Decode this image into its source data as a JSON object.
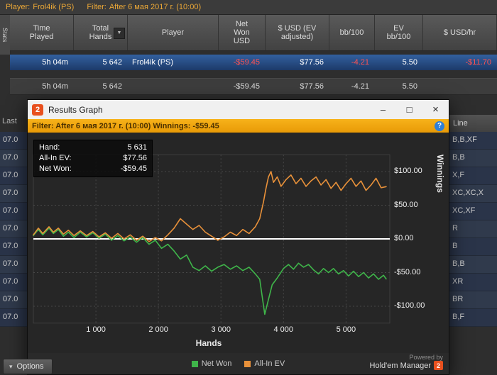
{
  "colors": {
    "accent_orange": "#eaa737",
    "negative_red": "#ff5252",
    "selected_row_blue": "#2d5090",
    "filter_bar_orange": "#f0a30a",
    "net_won_green": "#3fb54a",
    "allin_ev_orange": "#e8913a"
  },
  "top_bar": {
    "player_label": "Player:",
    "player_value": "Frol4ik (PS)",
    "filter_label": "Filter:",
    "filter_value": "After 6 мая 2017 г. (10:00)"
  },
  "stats_tab": "Stats",
  "table": {
    "columns": [
      "Time\nPlayed",
      "Total\nHands",
      "Player",
      "Net\nWon\nUSD",
      "$ USD (EV\nadjusted)",
      "bb/100",
      "EV\nbb/100",
      "$ USD/hr"
    ],
    "sort_arrow": "▼",
    "rows": [
      {
        "selected": true,
        "cells": [
          {
            "t": "5h 04m"
          },
          {
            "t": "5 642"
          },
          {
            "t": "Frol4ik (PS)",
            "align": "left"
          },
          {
            "t": "-$59.45",
            "neg": true
          },
          {
            "t": "$77.56"
          },
          {
            "t": "-4.21",
            "neg": true
          },
          {
            "t": "5.50"
          },
          {
            "t": "-$11.70",
            "neg": true
          }
        ]
      },
      {
        "selected": false,
        "cells": [
          {
            "t": "5h 04m"
          },
          {
            "t": "5 642"
          },
          {
            "t": "",
            "align": "left"
          },
          {
            "t": "-$59.45"
          },
          {
            "t": "$77.56"
          },
          {
            "t": "-4.21"
          },
          {
            "t": "5.50"
          },
          {
            "t": ""
          }
        ]
      }
    ]
  },
  "background": {
    "last_label": "Last",
    "line_header": "Line",
    "rows": [
      {
        "time": "07.0",
        "line": "B,B,XF"
      },
      {
        "time": "07.0",
        "line": "B,B"
      },
      {
        "time": "07.0",
        "line": "X,F"
      },
      {
        "time": "07.0",
        "line": "XC,XC,X"
      },
      {
        "time": "07.0",
        "line": "XC,XF"
      },
      {
        "time": "07.0",
        "line": "R"
      },
      {
        "time": "07.0",
        "line": "B"
      },
      {
        "time": "07.0",
        "line": "B,B"
      },
      {
        "time": "07.0",
        "line": "XR"
      },
      {
        "time": "07.0",
        "line": "BR"
      },
      {
        "time": "07.0",
        "line": "B,F"
      }
    ]
  },
  "options_button": {
    "label": "Options",
    "chevron": "▾"
  },
  "window": {
    "title": "Results Graph",
    "logo_glyph": "2",
    "controls": {
      "minimize": "–",
      "maximize": "□",
      "close": "×"
    },
    "filter_bar": {
      "text": "Filter: After 6 мая 2017 г. (10:00) Winnings: -$59.45",
      "help_glyph": "?"
    },
    "info_box": [
      {
        "label": "Hand:",
        "value": "5 631"
      },
      {
        "label": "All-In EV:",
        "value": "$77.56"
      },
      {
        "label": "Net Won:",
        "value": "-$59.45"
      }
    ],
    "powered_by": {
      "line1": "Powered by",
      "line2": "Hold'em Manager",
      "logo": "2"
    }
  },
  "chart_data": {
    "type": "line",
    "title": "Results Graph",
    "xlabel": "Hands",
    "ylabel": "Winnings",
    "xlim": [
      0,
      5700
    ],
    "ylim": [
      -125,
      125
    ],
    "grid": true,
    "legend_position": "bottom",
    "zero_line": true,
    "x_ticks": [
      {
        "label": "1 000",
        "value": 1000
      },
      {
        "label": "2 000",
        "value": 2000
      },
      {
        "label": "3 000",
        "value": 3000
      },
      {
        "label": "4 000",
        "value": 4000
      },
      {
        "label": "5 000",
        "value": 5000
      }
    ],
    "y_ticks": [
      {
        "label": "$100.00",
        "value": 100
      },
      {
        "label": "$50.00",
        "value": 50
      },
      {
        "label": "$0.00",
        "value": 0
      },
      {
        "label": "-$50.00",
        "value": -50
      },
      {
        "label": "-$100.00",
        "value": -100
      }
    ],
    "series": [
      {
        "name": "Net Won",
        "color": "#3fb54a",
        "final_value": -59.45,
        "points": [
          [
            0,
            5
          ],
          [
            80,
            14
          ],
          [
            150,
            6
          ],
          [
            250,
            16
          ],
          [
            320,
            8
          ],
          [
            400,
            14
          ],
          [
            480,
            4
          ],
          [
            560,
            10
          ],
          [
            650,
            2
          ],
          [
            750,
            10
          ],
          [
            850,
            3
          ],
          [
            950,
            9
          ],
          [
            1050,
            1
          ],
          [
            1150,
            7
          ],
          [
            1250,
            -2
          ],
          [
            1350,
            5
          ],
          [
            1450,
            -3
          ],
          [
            1550,
            3
          ],
          [
            1650,
            -5
          ],
          [
            1750,
            2
          ],
          [
            1850,
            -8
          ],
          [
            1950,
            -2
          ],
          [
            2050,
            -14
          ],
          [
            2150,
            -8
          ],
          [
            2250,
            -18
          ],
          [
            2350,
            -30
          ],
          [
            2450,
            -24
          ],
          [
            2550,
            -42
          ],
          [
            2650,
            -47
          ],
          [
            2750,
            -40
          ],
          [
            2850,
            -48
          ],
          [
            2950,
            -42
          ],
          [
            3050,
            -38
          ],
          [
            3150,
            -45
          ],
          [
            3250,
            -40
          ],
          [
            3350,
            -47
          ],
          [
            3450,
            -42
          ],
          [
            3550,
            -52
          ],
          [
            3620,
            -60
          ],
          [
            3700,
            -112
          ],
          [
            3760,
            -90
          ],
          [
            3820,
            -68
          ],
          [
            3900,
            -58
          ],
          [
            4000,
            -44
          ],
          [
            4080,
            -38
          ],
          [
            4160,
            -45
          ],
          [
            4240,
            -36
          ],
          [
            4320,
            -42
          ],
          [
            4400,
            -38
          ],
          [
            4480,
            -46
          ],
          [
            4560,
            -52
          ],
          [
            4640,
            -44
          ],
          [
            4720,
            -50
          ],
          [
            4800,
            -44
          ],
          [
            4880,
            -52
          ],
          [
            4960,
            -47
          ],
          [
            5040,
            -55
          ],
          [
            5120,
            -48
          ],
          [
            5200,
            -56
          ],
          [
            5280,
            -50
          ],
          [
            5360,
            -58
          ],
          [
            5440,
            -52
          ],
          [
            5520,
            -60
          ],
          [
            5600,
            -54
          ],
          [
            5642,
            -59.45
          ]
        ]
      },
      {
        "name": "All-In EV",
        "color": "#e8913a",
        "final_value": 77.56,
        "points": [
          [
            0,
            6
          ],
          [
            80,
            16
          ],
          [
            150,
            8
          ],
          [
            250,
            18
          ],
          [
            320,
            10
          ],
          [
            400,
            16
          ],
          [
            480,
            7
          ],
          [
            560,
            13
          ],
          [
            650,
            5
          ],
          [
            750,
            12
          ],
          [
            850,
            5
          ],
          [
            950,
            11
          ],
          [
            1050,
            3
          ],
          [
            1150,
            9
          ],
          [
            1250,
            1
          ],
          [
            1350,
            8
          ],
          [
            1450,
            0
          ],
          [
            1550,
            6
          ],
          [
            1650,
            -2
          ],
          [
            1750,
            4
          ],
          [
            1850,
            -4
          ],
          [
            1950,
            2
          ],
          [
            2050,
            -3
          ],
          [
            2150,
            6
          ],
          [
            2250,
            16
          ],
          [
            2350,
            30
          ],
          [
            2450,
            22
          ],
          [
            2550,
            14
          ],
          [
            2650,
            20
          ],
          [
            2750,
            10
          ],
          [
            2850,
            4
          ],
          [
            2950,
            -2
          ],
          [
            3050,
            3
          ],
          [
            3150,
            10
          ],
          [
            3250,
            5
          ],
          [
            3350,
            14
          ],
          [
            3450,
            8
          ],
          [
            3550,
            18
          ],
          [
            3620,
            30
          ],
          [
            3680,
            55
          ],
          [
            3720,
            75
          ],
          [
            3760,
            92
          ],
          [
            3800,
            100
          ],
          [
            3840,
            84
          ],
          [
            3900,
            92
          ],
          [
            3960,
            78
          ],
          [
            4040,
            88
          ],
          [
            4120,
            95
          ],
          [
            4200,
            82
          ],
          [
            4280,
            90
          ],
          [
            4360,
            78
          ],
          [
            4440,
            86
          ],
          [
            4520,
            92
          ],
          [
            4600,
            80
          ],
          [
            4680,
            88
          ],
          [
            4760,
            75
          ],
          [
            4840,
            84
          ],
          [
            4920,
            72
          ],
          [
            5000,
            82
          ],
          [
            5080,
            90
          ],
          [
            5160,
            78
          ],
          [
            5240,
            86
          ],
          [
            5320,
            72
          ],
          [
            5400,
            80
          ],
          [
            5480,
            90
          ],
          [
            5560,
            76
          ],
          [
            5642,
            77.56
          ]
        ]
      }
    ]
  }
}
